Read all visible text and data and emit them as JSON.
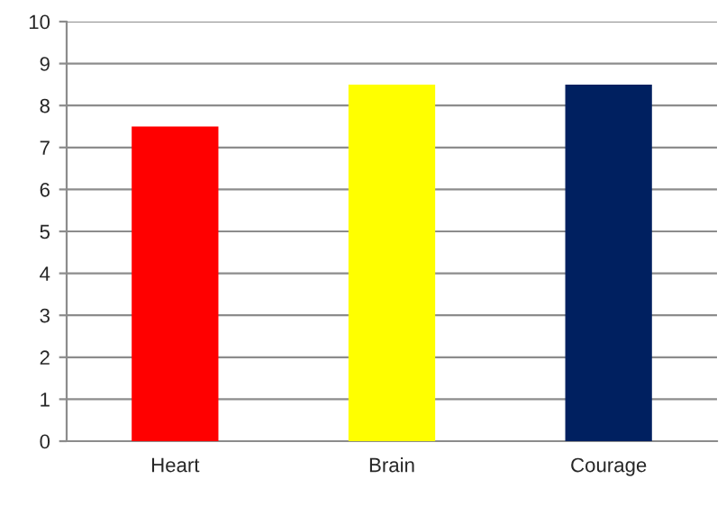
{
  "chart_data": {
    "type": "bar",
    "categories": [
      "Heart",
      "Brain",
      "Courage"
    ],
    "values": [
      7.5,
      8.5,
      8.5
    ],
    "colors": [
      "#ff0000",
      "#ffff00",
      "#002060"
    ],
    "ylim": [
      0,
      10
    ],
    "yticks": [
      0,
      1,
      2,
      3,
      4,
      5,
      6,
      7,
      8,
      9,
      10
    ],
    "grid": "y"
  }
}
